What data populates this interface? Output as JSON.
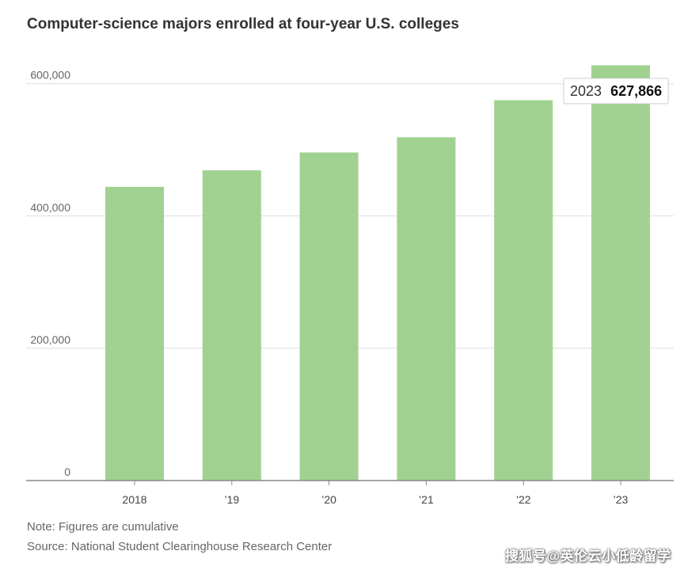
{
  "chart_data": {
    "type": "bar",
    "title": "Computer-science majors enrolled at four-year U.S. colleges",
    "categories": [
      "2018",
      "’19",
      "’20",
      "’21",
      "’22",
      "’23"
    ],
    "values": [
      444000,
      469000,
      496000,
      519000,
      575000,
      627866
    ],
    "ylim": [
      0,
      620000
    ],
    "yticks": [
      0,
      200000,
      400000,
      600000
    ],
    "ytick_labels": [
      "0",
      "200,000",
      "400,000",
      "600,000"
    ],
    "xlabel": "",
    "ylabel": "",
    "grid": true,
    "bar_color": "#a0d190",
    "tooltip": {
      "year": "2023",
      "value": "627,866"
    }
  },
  "notes": {
    "note": "Note: Figures are cumulative",
    "source": "Source: National Student Clearinghouse Research Center"
  },
  "watermark": "搜狐号@英伦云小低龄留学"
}
